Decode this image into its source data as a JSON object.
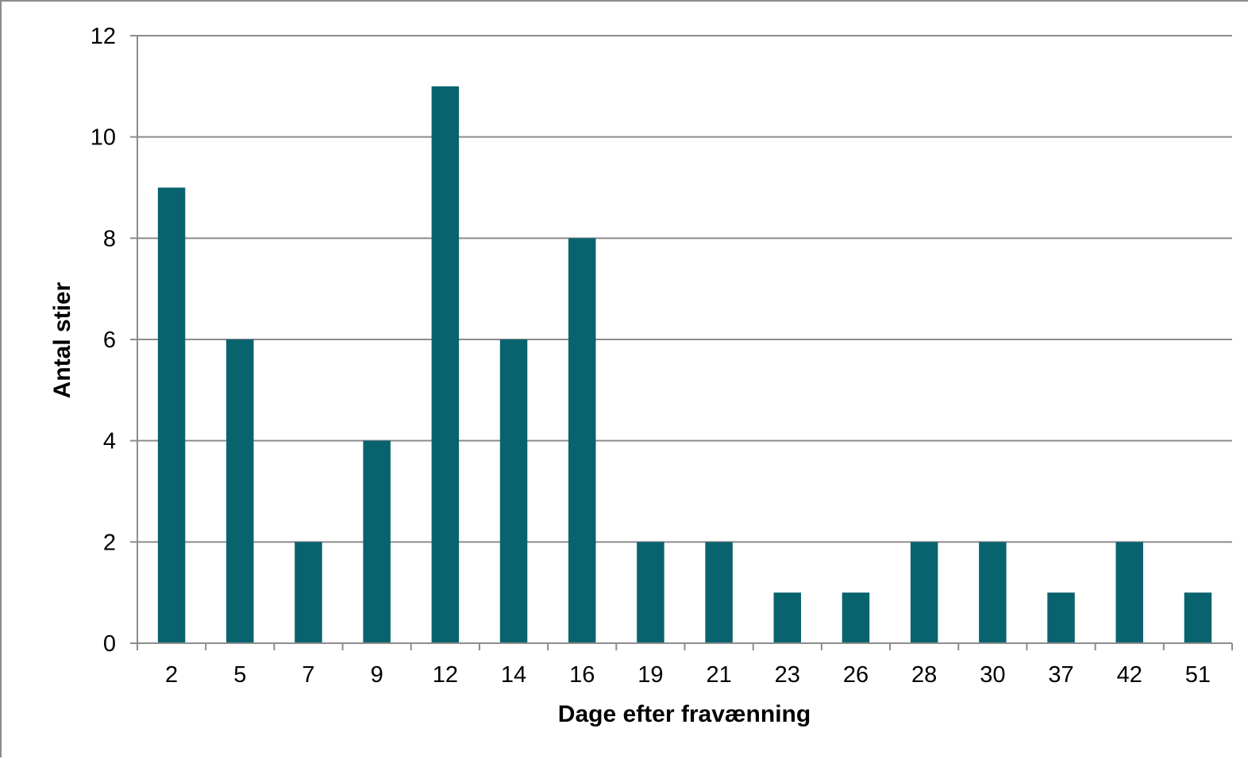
{
  "chart_data": {
    "type": "bar",
    "title": "",
    "xlabel": "Dage efter fravænning",
    "ylabel": "Antal stier",
    "categories": [
      "2",
      "5",
      "7",
      "9",
      "12",
      "14",
      "16",
      "19",
      "21",
      "23",
      "26",
      "28",
      "30",
      "37",
      "42",
      "51"
    ],
    "series": [
      {
        "values": [
          9,
          6,
          2,
          4,
          11,
          6,
          8,
          2,
          2,
          1,
          1,
          2,
          2,
          1,
          2,
          1
        ],
        "color": "#09636e"
      }
    ],
    "ylim": [
      0,
      12
    ],
    "yticks": [
      0,
      2,
      4,
      6,
      8,
      10,
      12
    ],
    "grid": "horizontal",
    "legend": "none",
    "colors": {
      "bar": "#09636e",
      "grid": "#8c8c8c",
      "axis": "#8c8c8c"
    }
  }
}
